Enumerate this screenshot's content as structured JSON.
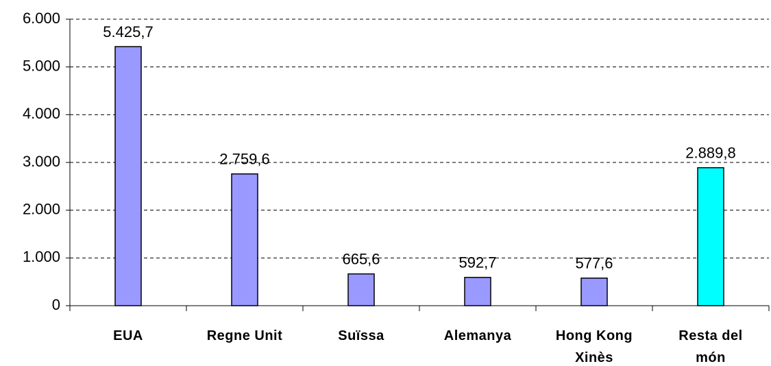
{
  "chart_data": {
    "type": "bar",
    "categories": [
      "EUA",
      "Regne Unit",
      "Suïssa",
      "Alemanya",
      "Hong Kong Xinès",
      "Resta del món"
    ],
    "values": [
      5425.7,
      2759.6,
      665.6,
      592.7,
      577.6,
      2889.8
    ],
    "value_labels": [
      "5.425,7",
      "2.759,6",
      "665,6",
      "592,7",
      "577,6",
      "2.889,8"
    ],
    "colors": [
      "#9999ff",
      "#9999ff",
      "#9999ff",
      "#9999ff",
      "#9999ff",
      "#00ffff"
    ],
    "ylim": [
      0,
      6000
    ],
    "yticks": [
      0,
      {
        "value": 1000,
        "label": "1.000"
      },
      {
        "value": 2000,
        "label": "2.000"
      },
      {
        "value": 3000,
        "label": "3.000"
      },
      {
        "value": 4000,
        "label": "4.000"
      },
      {
        "value": 5000,
        "label": "5.000"
      },
      {
        "value": 6000,
        "label": "6.000"
      }
    ],
    "grid": true
  }
}
